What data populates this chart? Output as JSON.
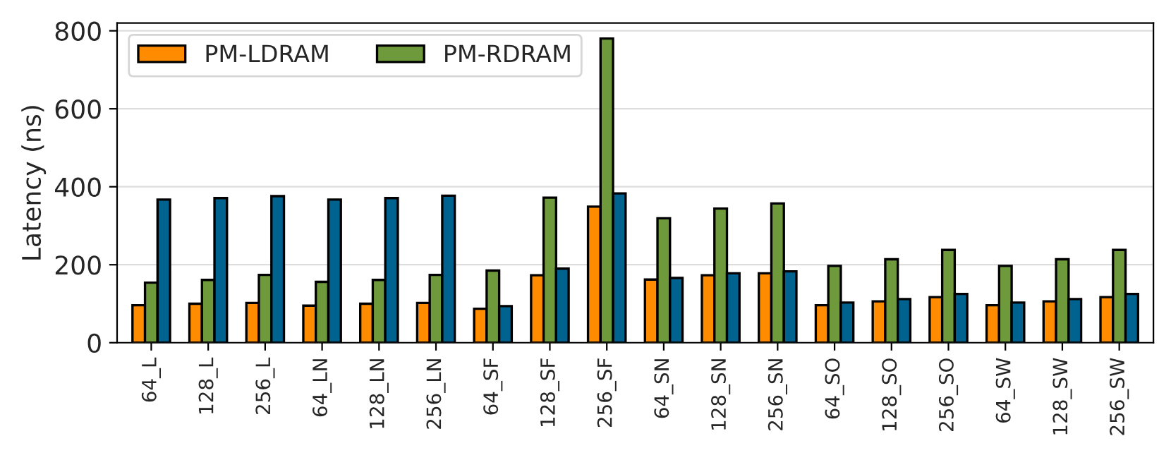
{
  "chart_data": {
    "type": "bar",
    "ylabel": "Latency (ns)",
    "categories": [
      "64_L",
      "128_L",
      "256_L",
      "64_LN",
      "128_LN",
      "256_LN",
      "64_SF",
      "128_SF",
      "256_SF",
      "64_SN",
      "128_SN",
      "256_SN",
      "64_SO",
      "128_SO",
      "256_SO",
      "64_SW",
      "128_SW",
      "256_SW"
    ],
    "series": [
      {
        "name": "PM-LDRAM",
        "color": "#ff8c00",
        "values": [
          96,
          100,
          102,
          95,
          100,
          102,
          87,
          173,
          349,
          162,
          173,
          178,
          96,
          106,
          117,
          96,
          106,
          117
        ]
      },
      {
        "name": "PM-RDRAM",
        "color": "#6f9a3c",
        "values": [
          154,
          161,
          174,
          156,
          161,
          174,
          185,
          372,
          780,
          319,
          344,
          357,
          197,
          214,
          238,
          197,
          214,
          238
        ]
      },
      {
        "color": "#00628f",
        "values": [
          367,
          371,
          376,
          367,
          371,
          377,
          94,
          190,
          383,
          166,
          178,
          183,
          103,
          112,
          125,
          103,
          112,
          125
        ]
      }
    ],
    "ylim": [
      0,
      820
    ],
    "yticks": [
      0,
      200,
      400,
      600,
      800
    ],
    "grid": "y",
    "legend": "top left"
  }
}
